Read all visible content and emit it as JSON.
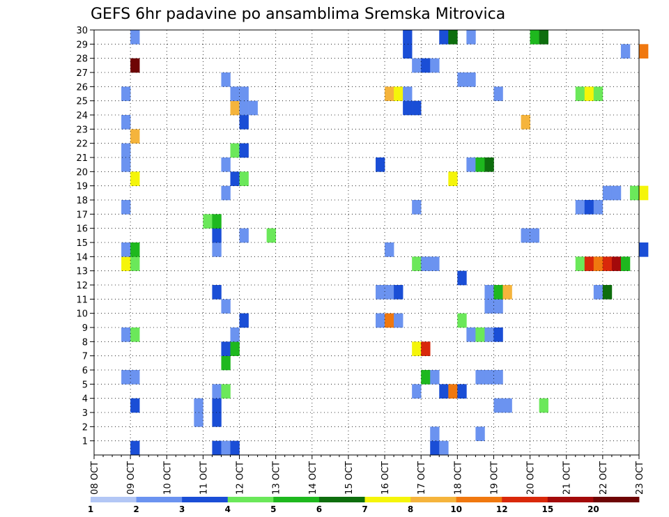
{
  "chart_data": {
    "type": "heatmap",
    "title": "GEFS 6hr padavine po ansamblima Sremska Mitrovica",
    "xlabel": "",
    "ylabel": "",
    "x_tick_labels": [
      "08 OCT",
      "09 OCT",
      "10 OCT",
      "11 OCT",
      "12 OCT",
      "13 OCT",
      "14 OCT",
      "15 OCT",
      "16 OCT",
      "17 OCT",
      "18 OCT",
      "19 OCT",
      "20 OCT",
      "21 OCT",
      "22 OCT",
      "23 OCT"
    ],
    "y_tick_labels": [
      "1",
      "2",
      "3",
      "4",
      "5",
      "6",
      "7",
      "8",
      "9",
      "10",
      "11",
      "12",
      "13",
      "14",
      "15",
      "16",
      "17",
      "18",
      "19",
      "20",
      "21",
      "22",
      "23",
      "24",
      "25",
      "26",
      "27",
      "28",
      "29",
      "30"
    ],
    "x_range_steps": [
      0,
      60
    ],
    "y_range_members": [
      0,
      30
    ],
    "grid": true,
    "colorbar": {
      "position": "bottom",
      "tick_labels": [
        "1",
        "2",
        "3",
        "4",
        "5",
        "6",
        "7",
        "8",
        "10",
        "12",
        "15",
        "20"
      ],
      "colors": [
        "#b3c7f5",
        "#6b93f0",
        "#1a4ed6",
        "#6be85a",
        "#1eb81e",
        "#0e6e0e",
        "#f5f50a",
        "#f5b43c",
        "#f0780f",
        "#d9280a",
        "#a30a0a",
        "#6e0505"
      ]
    },
    "cells": [
      {
        "s": 4,
        "m": 0,
        "c": 2
      },
      {
        "s": 13,
        "m": 0,
        "c": 2
      },
      {
        "s": 14,
        "m": 0,
        "c": 1
      },
      {
        "s": 15,
        "m": 0,
        "c": 2
      },
      {
        "s": 37,
        "m": 0,
        "c": 2
      },
      {
        "s": 38,
        "m": 0,
        "c": 1
      },
      {
        "s": 42,
        "m": 1,
        "c": 1
      },
      {
        "s": 11,
        "m": 2,
        "c": 1
      },
      {
        "s": 13,
        "m": 2,
        "c": 2
      },
      {
        "s": 37,
        "m": 1,
        "c": 1
      },
      {
        "s": 11,
        "m": 3,
        "c": 1
      },
      {
        "s": 13,
        "m": 3,
        "c": 2
      },
      {
        "s": 4,
        "m": 3,
        "c": 2
      },
      {
        "s": 44,
        "m": 3,
        "c": 1
      },
      {
        "s": 45,
        "m": 3,
        "c": 1
      },
      {
        "s": 49,
        "m": 3,
        "c": 3
      },
      {
        "s": 13,
        "m": 4,
        "c": 1
      },
      {
        "s": 14,
        "m": 4,
        "c": 3
      },
      {
        "s": 35,
        "m": 4,
        "c": 1
      },
      {
        "s": 38,
        "m": 4,
        "c": 2
      },
      {
        "s": 39,
        "m": 4,
        "c": 8
      },
      {
        "s": 40,
        "m": 4,
        "c": 2
      },
      {
        "s": 4,
        "m": 5,
        "c": 1
      },
      {
        "s": 3,
        "m": 5,
        "c": 1
      },
      {
        "s": 36,
        "m": 5,
        "c": 4
      },
      {
        "s": 37,
        "m": 5,
        "c": 1
      },
      {
        "s": 42,
        "m": 5,
        "c": 1
      },
      {
        "s": 43,
        "m": 5,
        "c": 1
      },
      {
        "s": 44,
        "m": 5,
        "c": 1
      },
      {
        "s": 14,
        "m": 6,
        "c": 4
      },
      {
        "s": 14,
        "m": 7,
        "c": 2
      },
      {
        "s": 15,
        "m": 7,
        "c": 4
      },
      {
        "s": 35,
        "m": 7,
        "c": 6
      },
      {
        "s": 36,
        "m": 7,
        "c": 9
      },
      {
        "s": 3,
        "m": 8,
        "c": 1
      },
      {
        "s": 4,
        "m": 8,
        "c": 3
      },
      {
        "s": 15,
        "m": 8,
        "c": 1
      },
      {
        "s": 41,
        "m": 8,
        "c": 1
      },
      {
        "s": 42,
        "m": 8,
        "c": 3
      },
      {
        "s": 43,
        "m": 8,
        "c": 1
      },
      {
        "s": 44,
        "m": 8,
        "c": 2
      },
      {
        "s": 16,
        "m": 9,
        "c": 2
      },
      {
        "s": 31,
        "m": 9,
        "c": 1
      },
      {
        "s": 32,
        "m": 9,
        "c": 8
      },
      {
        "s": 33,
        "m": 9,
        "c": 1
      },
      {
        "s": 40,
        "m": 9,
        "c": 3
      },
      {
        "s": 14,
        "m": 10,
        "c": 1
      },
      {
        "s": 43,
        "m": 10,
        "c": 1
      },
      {
        "s": 44,
        "m": 10,
        "c": 1
      },
      {
        "s": 13,
        "m": 11,
        "c": 2
      },
      {
        "s": 31,
        "m": 11,
        "c": 1
      },
      {
        "s": 32,
        "m": 11,
        "c": 1
      },
      {
        "s": 33,
        "m": 11,
        "c": 2
      },
      {
        "s": 43,
        "m": 11,
        "c": 1
      },
      {
        "s": 44,
        "m": 11,
        "c": 4
      },
      {
        "s": 45,
        "m": 11,
        "c": 7
      },
      {
        "s": 55,
        "m": 11,
        "c": 1
      },
      {
        "s": 56,
        "m": 11,
        "c": 5
      },
      {
        "s": 40,
        "m": 12,
        "c": 2
      },
      {
        "s": 3,
        "m": 13,
        "c": 6
      },
      {
        "s": 4,
        "m": 13,
        "c": 3
      },
      {
        "s": 35,
        "m": 13,
        "c": 3
      },
      {
        "s": 36,
        "m": 13,
        "c": 1
      },
      {
        "s": 37,
        "m": 13,
        "c": 1
      },
      {
        "s": 53,
        "m": 13,
        "c": 3
      },
      {
        "s": 54,
        "m": 13,
        "c": 9
      },
      {
        "s": 55,
        "m": 13,
        "c": 8
      },
      {
        "s": 56,
        "m": 13,
        "c": 9
      },
      {
        "s": 57,
        "m": 13,
        "c": 10
      },
      {
        "s": 58,
        "m": 13,
        "c": 4
      },
      {
        "s": 3,
        "m": 14,
        "c": 1
      },
      {
        "s": 4,
        "m": 14,
        "c": 4
      },
      {
        "s": 13,
        "m": 14,
        "c": 1
      },
      {
        "s": 32,
        "m": 14,
        "c": 1
      },
      {
        "s": 60,
        "m": 14,
        "c": 2
      },
      {
        "s": 13,
        "m": 15,
        "c": 2
      },
      {
        "s": 16,
        "m": 15,
        "c": 1
      },
      {
        "s": 19,
        "m": 15,
        "c": 3
      },
      {
        "s": 47,
        "m": 15,
        "c": 1
      },
      {
        "s": 48,
        "m": 15,
        "c": 1
      },
      {
        "s": 12,
        "m": 16,
        "c": 3
      },
      {
        "s": 13,
        "m": 16,
        "c": 4
      },
      {
        "s": 3,
        "m": 17,
        "c": 1
      },
      {
        "s": 35,
        "m": 17,
        "c": 1
      },
      {
        "s": 53,
        "m": 17,
        "c": 1
      },
      {
        "s": 54,
        "m": 17,
        "c": 2
      },
      {
        "s": 55,
        "m": 17,
        "c": 1
      },
      {
        "s": 14,
        "m": 18,
        "c": 1
      },
      {
        "s": 56,
        "m": 18,
        "c": 1
      },
      {
        "s": 57,
        "m": 18,
        "c": 1
      },
      {
        "s": 59,
        "m": 18,
        "c": 3
      },
      {
        "s": 60,
        "m": 18,
        "c": 6
      },
      {
        "s": 4,
        "m": 19,
        "c": 6
      },
      {
        "s": 15,
        "m": 19,
        "c": 2
      },
      {
        "s": 16,
        "m": 19,
        "c": 3
      },
      {
        "s": 39,
        "m": 19,
        "c": 6
      },
      {
        "s": 3,
        "m": 20,
        "c": 1
      },
      {
        "s": 14,
        "m": 20,
        "c": 1
      },
      {
        "s": 31,
        "m": 20,
        "c": 2
      },
      {
        "s": 41,
        "m": 20,
        "c": 1
      },
      {
        "s": 42,
        "m": 20,
        "c": 4
      },
      {
        "s": 43,
        "m": 20,
        "c": 5
      },
      {
        "s": 3,
        "m": 21,
        "c": 1
      },
      {
        "s": 15,
        "m": 21,
        "c": 3
      },
      {
        "s": 16,
        "m": 21,
        "c": 2
      },
      {
        "s": 4,
        "m": 22,
        "c": 7
      },
      {
        "s": 3,
        "m": 23,
        "c": 1
      },
      {
        "s": 16,
        "m": 23,
        "c": 2
      },
      {
        "s": 47,
        "m": 23,
        "c": 7
      },
      {
        "s": 15,
        "m": 24,
        "c": 7
      },
      {
        "s": 16,
        "m": 24,
        "c": 1
      },
      {
        "s": 17,
        "m": 24,
        "c": 1
      },
      {
        "s": 34,
        "m": 24,
        "c": 2
      },
      {
        "s": 35,
        "m": 24,
        "c": 2
      },
      {
        "s": 3,
        "m": 25,
        "c": 1
      },
      {
        "s": 15,
        "m": 25,
        "c": 1
      },
      {
        "s": 16,
        "m": 25,
        "c": 1
      },
      {
        "s": 32,
        "m": 25,
        "c": 7
      },
      {
        "s": 33,
        "m": 25,
        "c": 6
      },
      {
        "s": 34,
        "m": 25,
        "c": 1
      },
      {
        "s": 44,
        "m": 25,
        "c": 1
      },
      {
        "s": 53,
        "m": 25,
        "c": 3
      },
      {
        "s": 54,
        "m": 25,
        "c": 6
      },
      {
        "s": 55,
        "m": 25,
        "c": 3
      },
      {
        "s": 14,
        "m": 26,
        "c": 1
      },
      {
        "s": 40,
        "m": 26,
        "c": 1
      },
      {
        "s": 41,
        "m": 26,
        "c": 1
      },
      {
        "s": 4,
        "m": 27,
        "c": 11
      },
      {
        "s": 35,
        "m": 27,
        "c": 1
      },
      {
        "s": 36,
        "m": 27,
        "c": 2
      },
      {
        "s": 37,
        "m": 27,
        "c": 1
      },
      {
        "s": 34,
        "m": 28,
        "c": 2
      },
      {
        "s": 58,
        "m": 28,
        "c": 1
      },
      {
        "s": 60,
        "m": 28,
        "c": 8
      },
      {
        "s": 4,
        "m": 29,
        "c": 1
      },
      {
        "s": 34,
        "m": 29,
        "c": 2
      },
      {
        "s": 38,
        "m": 29,
        "c": 2
      },
      {
        "s": 39,
        "m": 29,
        "c": 5
      },
      {
        "s": 41,
        "m": 29,
        "c": 1
      },
      {
        "s": 48,
        "m": 29,
        "c": 4
      },
      {
        "s": 49,
        "m": 29,
        "c": 5
      }
    ]
  }
}
